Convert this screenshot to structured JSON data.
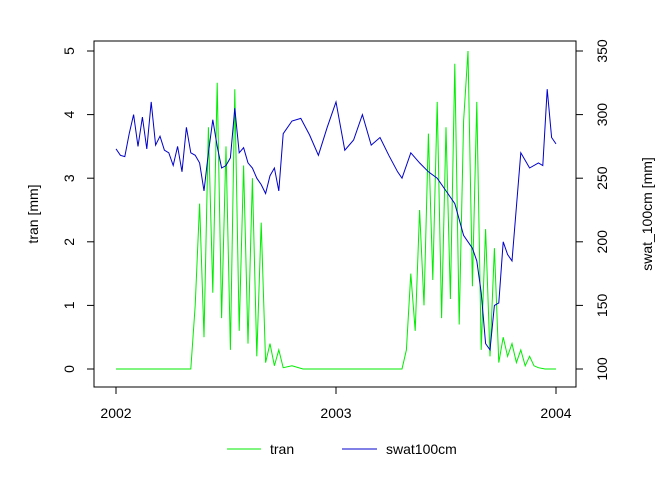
{
  "chart_data": {
    "type": "line",
    "title": "",
    "xlabel": "",
    "ylabel": "tran [mm]",
    "y2label": "swat_100cm [mm]",
    "x_ticks": [
      "2002",
      "2003",
      "2004"
    ],
    "x_range": [
      2002,
      2004
    ],
    "ylim": [
      0,
      5
    ],
    "y_ticks": [
      0,
      1,
      2,
      3,
      4,
      5
    ],
    "y2lim": [
      100,
      350
    ],
    "y2_ticks": [
      100,
      150,
      200,
      250,
      300,
      350
    ],
    "grid": false,
    "legend": {
      "placement": "bottom",
      "entries": [
        "tran",
        "swat100cm"
      ]
    },
    "colors": {
      "tran": "#00ee00",
      "swat100cm": "#0000cc"
    },
    "series": [
      {
        "name": "tran",
        "axis": "left",
        "x": [
          2002.0,
          2002.1,
          2002.2,
          2002.3,
          2002.34,
          2002.36,
          2002.38,
          2002.4,
          2002.42,
          2002.44,
          2002.46,
          2002.48,
          2002.5,
          2002.52,
          2002.54,
          2002.56,
          2002.58,
          2002.6,
          2002.62,
          2002.64,
          2002.66,
          2002.68,
          2002.7,
          2002.72,
          2002.74,
          2002.76,
          2002.8,
          2002.85,
          2002.9,
          2003.0,
          2003.1,
          2003.2,
          2003.3,
          2003.32,
          2003.34,
          2003.36,
          2003.38,
          2003.4,
          2003.42,
          2003.44,
          2003.46,
          2003.48,
          2003.5,
          2003.52,
          2003.54,
          2003.56,
          2003.58,
          2003.6,
          2003.62,
          2003.64,
          2003.66,
          2003.68,
          2003.7,
          2003.72,
          2003.74,
          2003.76,
          2003.78,
          2003.8,
          2003.82,
          2003.84,
          2003.86,
          2003.88,
          2003.9,
          2003.92,
          2003.95,
          2004.0
        ],
        "values": [
          0,
          0,
          0,
          0,
          0,
          1.0,
          2.6,
          0.5,
          3.8,
          1.2,
          4.5,
          0.8,
          3.5,
          0.3,
          4.4,
          0.6,
          3.2,
          0.4,
          3.0,
          0.2,
          2.3,
          0.1,
          0.4,
          0.05,
          0.3,
          0.02,
          0.05,
          0,
          0,
          0,
          0,
          0,
          0,
          0.3,
          1.5,
          0.6,
          2.5,
          1.0,
          3.7,
          1.4,
          4.2,
          0.8,
          3.8,
          1.1,
          4.8,
          0.7,
          3.9,
          5.0,
          1.3,
          4.2,
          0.3,
          2.2,
          0.2,
          1.9,
          0.1,
          0.5,
          0.2,
          0.4,
          0.1,
          0.3,
          0.05,
          0.2,
          0.05,
          0.02,
          0,
          0
        ]
      },
      {
        "name": "swat100cm",
        "axis": "right",
        "x": [
          2002.0,
          2002.02,
          2002.04,
          2002.06,
          2002.08,
          2002.1,
          2002.12,
          2002.14,
          2002.16,
          2002.18,
          2002.2,
          2002.22,
          2002.24,
          2002.26,
          2002.28,
          2002.3,
          2002.32,
          2002.34,
          2002.36,
          2002.38,
          2002.4,
          2002.42,
          2002.44,
          2002.46,
          2002.48,
          2002.5,
          2002.52,
          2002.54,
          2002.56,
          2002.58,
          2002.6,
          2002.62,
          2002.64,
          2002.66,
          2002.68,
          2002.7,
          2002.72,
          2002.74,
          2002.76,
          2002.8,
          2002.84,
          2002.88,
          2002.92,
          2002.96,
          2003.0,
          2003.04,
          2003.08,
          2003.12,
          2003.16,
          2003.2,
          2003.24,
          2003.28,
          2003.3,
          2003.34,
          2003.38,
          2003.42,
          2003.46,
          2003.5,
          2003.54,
          2003.58,
          2003.62,
          2003.64,
          2003.66,
          2003.68,
          2003.7,
          2003.72,
          2003.74,
          2003.76,
          2003.78,
          2003.8,
          2003.84,
          2003.88,
          2003.92,
          2003.94,
          2003.96,
          2003.98,
          2004.0
        ],
        "values": [
          273,
          268,
          267,
          285,
          300,
          275,
          298,
          273,
          310,
          276,
          283,
          272,
          270,
          260,
          275,
          255,
          290,
          270,
          268,
          262,
          240,
          270,
          296,
          275,
          258,
          260,
          266,
          305,
          270,
          274,
          262,
          258,
          250,
          245,
          238,
          252,
          258,
          240,
          285,
          295,
          297,
          284,
          268,
          290,
          310,
          272,
          280,
          300,
          276,
          282,
          268,
          255,
          250,
          270,
          262,
          255,
          250,
          240,
          230,
          205,
          195,
          185,
          160,
          120,
          115,
          150,
          152,
          200,
          190,
          185,
          270,
          258,
          262,
          260,
          320,
          282,
          277
        ]
      }
    ]
  }
}
